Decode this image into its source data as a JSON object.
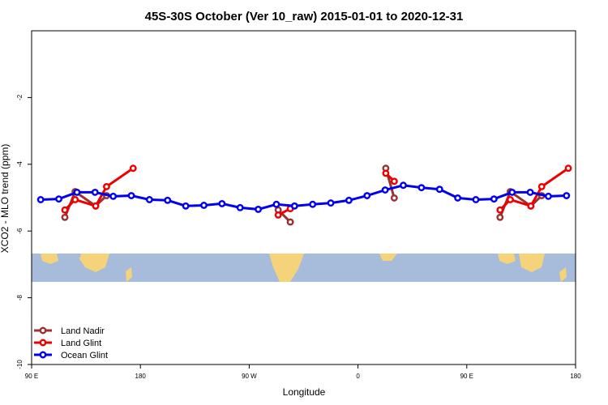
{
  "chart_data": {
    "type": "line",
    "title": "45S-30S October (Ver 10_raw)   2015-01-01 to 2020-12-31",
    "x_label": "Longitude",
    "y_label": "XCO2 - MLO trend (ppm)",
    "xlim": [
      90,
      540
    ],
    "xticks": [
      {
        "value": 90,
        "label": "90 E"
      },
      {
        "value": 180,
        "label": "180"
      },
      {
        "value": 270,
        "label": "90 W"
      },
      {
        "value": 360,
        "label": "0"
      },
      {
        "value": 450,
        "label": "90 E"
      },
      {
        "value": 540,
        "label": "180"
      }
    ],
    "ylim": [
      -10,
      0
    ],
    "yticks": [
      -10,
      -8,
      -6,
      -4,
      -2
    ],
    "legend": "bottom-left",
    "series": [
      {
        "name": "Land Nadir",
        "color": "#993333",
        "x": [
          117.5,
          126,
          143,
          152,
          null,
          294,
          304,
          null,
          383,
          390,
          null,
          477.5,
          486,
          503,
          512
        ],
        "values": [
          -5.59,
          -4.82,
          -5.25,
          -4.94,
          null,
          -5.37,
          -5.73,
          null,
          -4.12,
          -5.01,
          null,
          -5.59,
          -4.82,
          -5.25,
          -4.94
        ]
      },
      {
        "name": "Land Glint",
        "color": "#ee0000",
        "x": [
          117.5,
          126,
          143,
          152,
          174,
          null,
          294,
          304,
          null,
          383,
          390,
          null,
          477.5,
          486,
          503,
          512,
          534
        ],
        "values": [
          -5.37,
          -5.06,
          -5.25,
          -4.67,
          -4.12,
          null,
          -5.52,
          -5.33,
          null,
          -4.27,
          -4.51,
          null,
          -5.37,
          -5.06,
          -5.25,
          -4.67,
          -4.12
        ]
      },
      {
        "name": "Ocean Glint",
        "color": "#0000ee",
        "x": [
          97.5,
          112.5,
          127.5,
          142.5,
          157.5,
          172.5,
          187.5,
          202.5,
          217.5,
          232.5,
          247.5,
          262.5,
          277.5,
          292.5,
          307.5,
          322.5,
          337.5,
          352.5,
          367.5,
          382.5,
          397.5,
          412.5,
          427.5,
          442.5,
          457.5,
          472.5,
          487.5,
          502.5,
          517.5,
          532.5
        ],
        "values": [
          -5.06,
          -5.04,
          -4.84,
          -4.84,
          -4.96,
          -4.94,
          -5.06,
          -5.08,
          -5.25,
          -5.23,
          -5.18,
          -5.3,
          -5.35,
          -5.2,
          -5.25,
          -5.2,
          -5.16,
          -5.08,
          -4.94,
          -4.77,
          -4.63,
          -4.7,
          -4.75,
          -5.01,
          -5.06,
          -5.04,
          -4.84,
          -4.84,
          -4.96,
          -4.94
        ]
      }
    ]
  }
}
